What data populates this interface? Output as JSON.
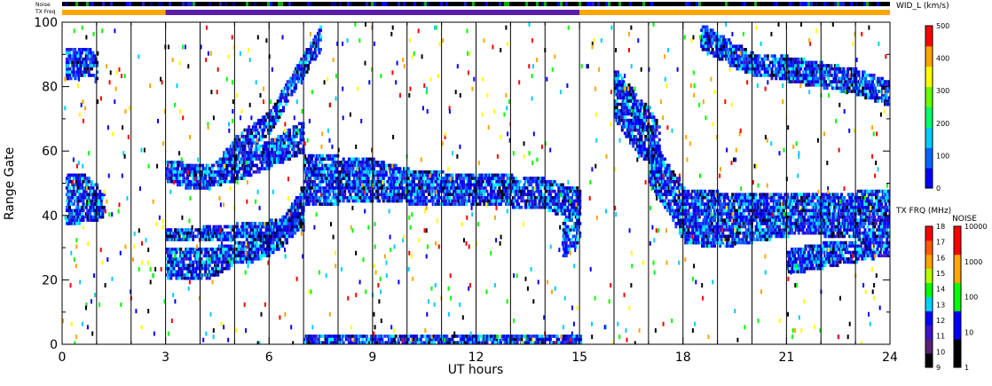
{
  "chart_data": {
    "type": "heatmap",
    "title": "",
    "xlabel": "UT hours",
    "ylabel": "Range Gate",
    "x_ticks": [
      "0",
      "3",
      "6",
      "9",
      "12",
      "15",
      "18",
      "21",
      "24"
    ],
    "y_ticks": [
      "0",
      "20",
      "40",
      "60",
      "80",
      "100"
    ],
    "xlim": [
      0,
      24
    ],
    "ylim": [
      0,
      100
    ],
    "grid_hours": [
      1,
      2,
      3,
      4,
      5,
      6,
      7,
      8,
      9,
      10,
      11,
      12,
      13,
      14,
      15,
      16,
      17,
      18,
      19,
      20,
      21,
      22,
      23
    ],
    "top_bars": {
      "noise_label": "Noise",
      "txfreq_label": "TX Freq",
      "txfreq_segments": [
        {
          "from": 0,
          "to": 3,
          "color": "#ffa500"
        },
        {
          "from": 3,
          "to": 15,
          "color": "#5a1ea8"
        },
        {
          "from": 15,
          "to": 24,
          "color": "#ffa500"
        }
      ]
    },
    "colorbars": [
      {
        "name": "WID_L (km/s)",
        "ticks": [
          "0",
          "100",
          "200",
          "300",
          "400",
          "500"
        ],
        "colors": [
          "#0000ff",
          "#0066ff",
          "#00ccff",
          "#00ff66",
          "#66ff00",
          "#ffff00",
          "#ffa500",
          "#ff0000"
        ]
      },
      {
        "name": "TX FRQ (MHz)",
        "ticks": [
          "9",
          "10",
          "11",
          "12",
          "13",
          "14",
          "15",
          "16",
          "17",
          "18"
        ],
        "colors": [
          "#000000",
          "#5a1e78",
          "#3c14c8",
          "#0000ff",
          "#00d2ff",
          "#00ff00",
          "#b4ff00",
          "#ffa500",
          "#ff5a00",
          "#ff0000"
        ]
      },
      {
        "name": "NOISE",
        "ticks": [
          "1",
          "10",
          "100",
          "1000",
          "10000"
        ],
        "colors": [
          "#000000",
          "#0000ff",
          "#00ff00",
          "#ffa500",
          "#ff0000"
        ]
      }
    ],
    "series": [
      {
        "kind": "band",
        "x": [
          0.1,
          0.5,
          1.0,
          1.2
        ],
        "y_low": [
          37,
          38,
          39,
          40
        ],
        "y_high": [
          52,
          52,
          48,
          46
        ]
      },
      {
        "kind": "band",
        "x": [
          0.1,
          0.8,
          1.0
        ],
        "y_low": [
          82,
          84,
          81
        ],
        "y_high": [
          91,
          90,
          87
        ]
      },
      {
        "kind": "band",
        "x": [
          3.0,
          3.5,
          4.0,
          4.5,
          5.0,
          5.5,
          6.0,
          6.5,
          7.0
        ],
        "y_low": [
          20,
          20,
          20,
          22,
          25,
          26,
          28,
          32,
          38
        ],
        "y_high": [
          29,
          29,
          29,
          29,
          30,
          32,
          34,
          40,
          48
        ]
      },
      {
        "kind": "band",
        "x": [
          3.0,
          4.0,
          5.0,
          6.0,
          7.0
        ],
        "y_low": [
          32,
          32,
          33,
          34,
          36
        ],
        "y_high": [
          35,
          35,
          36,
          37,
          40
        ]
      },
      {
        "kind": "band",
        "x": [
          3.0,
          3.5,
          4.0,
          5.0,
          6.0,
          7.0
        ],
        "y_low": [
          51,
          49,
          48,
          51,
          55,
          60
        ],
        "y_high": [
          56,
          55,
          54,
          57,
          62,
          68
        ]
      },
      {
        "kind": "band",
        "x": [
          4.5,
          5.0,
          6.0,
          6.5,
          7.0,
          7.5
        ],
        "y_low": [
          52,
          58,
          66,
          75,
          84,
          92
        ],
        "y_high": [
          56,
          63,
          71,
          80,
          89,
          98
        ]
      },
      {
        "kind": "band",
        "x": [
          7.0,
          8.0,
          9.0,
          10.0,
          11.0,
          12.0,
          13.0,
          14.0,
          14.5
        ],
        "y_low": [
          43,
          44,
          44,
          44,
          43,
          43,
          43,
          42,
          40
        ],
        "y_high": [
          58,
          57,
          56,
          53,
          52,
          52,
          51,
          50,
          48
        ]
      },
      {
        "kind": "band",
        "x": [
          14.5,
          14.8,
          15.0
        ],
        "y_low": [
          27,
          30,
          34
        ],
        "y_high": [
          47,
          48,
          46
        ]
      },
      {
        "kind": "band",
        "x": [
          7.0,
          9.0,
          12.0,
          14.0,
          15.0
        ],
        "y_low": [
          0,
          0,
          0,
          0,
          0
        ],
        "y_high": [
          2,
          2,
          2,
          2,
          1
        ]
      },
      {
        "kind": "band",
        "x": [
          17.0,
          17.5,
          18.0,
          19.0,
          20.0,
          21.0,
          22.0,
          23.0,
          24.0
        ],
        "y_low": [
          50,
          42,
          32,
          30,
          32,
          34,
          34,
          33,
          34
        ],
        "y_high": [
          64,
          55,
          47,
          46,
          46,
          46,
          46,
          46,
          47
        ]
      },
      {
        "kind": "band",
        "x": [
          16.0,
          16.5,
          17.0,
          17.3
        ],
        "y_low": [
          70,
          62,
          56,
          52
        ],
        "y_high": [
          84,
          78,
          72,
          66
        ]
      },
      {
        "kind": "band",
        "x": [
          18.5,
          19.5,
          20.0,
          21.0,
          22.0,
          23.0,
          24.0
        ],
        "y_low": [
          92,
          86,
          84,
          82,
          80,
          78,
          74
        ],
        "y_high": [
          98,
          92,
          89,
          88,
          86,
          84,
          80
        ]
      },
      {
        "kind": "band",
        "x": [
          21.0,
          22.0,
          23.0,
          24.0
        ],
        "y_low": [
          22,
          24,
          26,
          28
        ],
        "y_high": [
          28,
          30,
          31,
          33
        ]
      }
    ]
  }
}
